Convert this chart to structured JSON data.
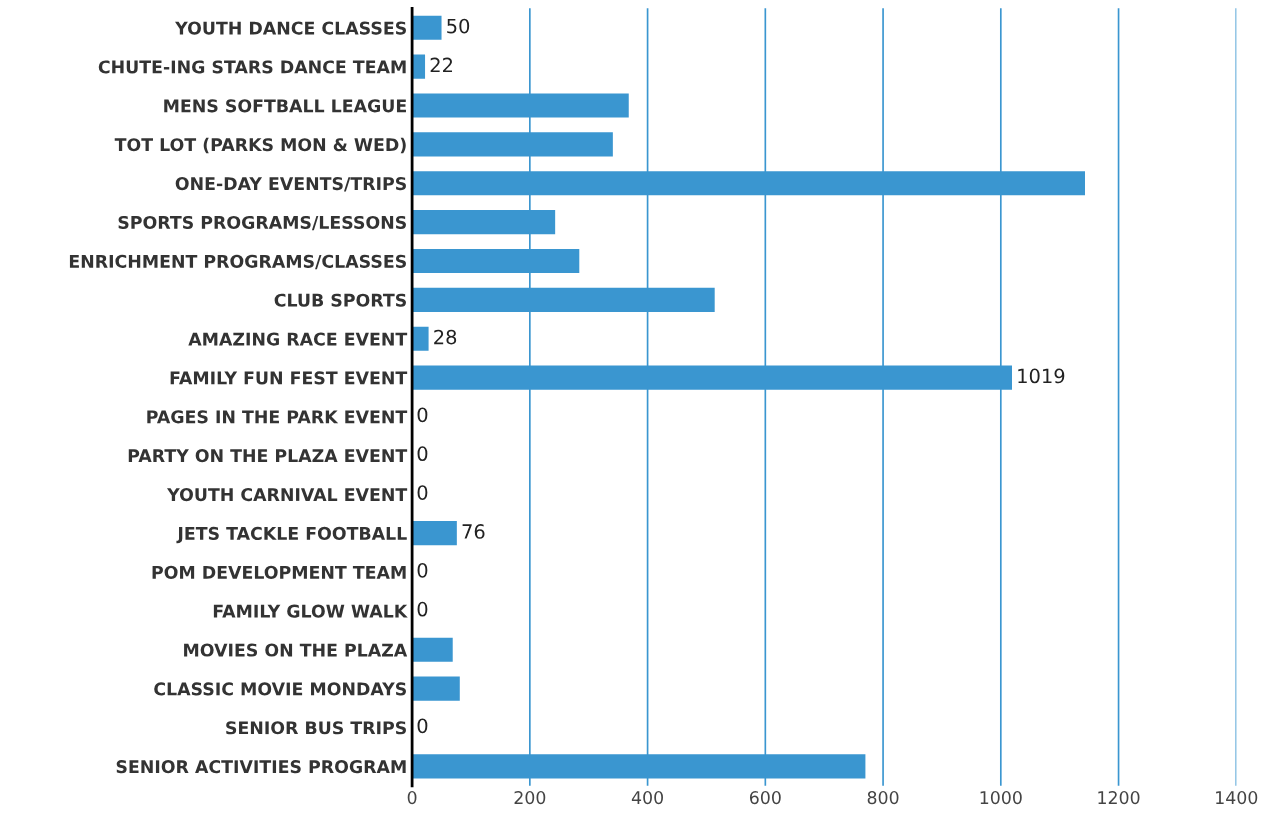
{
  "chart_data": {
    "type": "bar",
    "orientation": "horizontal",
    "categories": [
      "YOUTH DANCE CLASSES",
      "CHUTE-ING STARS DANCE TEAM",
      "MENS SOFTBALL LEAGUE",
      "TOT LOT (PARKS MON & WED)",
      "ONE-DAY EVENTS/TRIPS",
      "SPORTS PROGRAMS/LESSONS",
      "ENRICHMENT PROGRAMS/CLASSES",
      "CLUB SPORTS",
      "AMAZING RACE EVENT",
      "FAMILY FUN FEST EVENT",
      "PAGES IN THE PARK EVENT",
      "PARTY ON THE PLAZA EVENT",
      "YOUTH CARNIVAL EVENT",
      "JETS TACKLE FOOTBALL",
      "POM DEVELOPMENT TEAM",
      "FAMILY GLOW WALK",
      "MOVIES ON THE PLAZA",
      "CLASSIC MOVIE MONDAYS",
      "SENIOR BUS TRIPS",
      "SENIOR ACTIVITIES PROGRAM"
    ],
    "values": [
      50,
      22,
      368,
      341,
      1143,
      243,
      284,
      514,
      28,
      1019,
      0,
      0,
      0,
      76,
      0,
      0,
      69,
      81,
      0,
      770
    ],
    "value_labels": [
      "50",
      "22",
      null,
      null,
      null,
      null,
      null,
      null,
      "28",
      "1019",
      "0",
      "0",
      "0",
      "76",
      "0",
      "0",
      null,
      null,
      "0",
      null
    ],
    "color": "#3a96d0",
    "xlim": [
      0,
      1400
    ],
    "xticks": [
      0,
      200,
      400,
      600,
      800,
      1000,
      1200,
      1400
    ],
    "grid": "x"
  }
}
